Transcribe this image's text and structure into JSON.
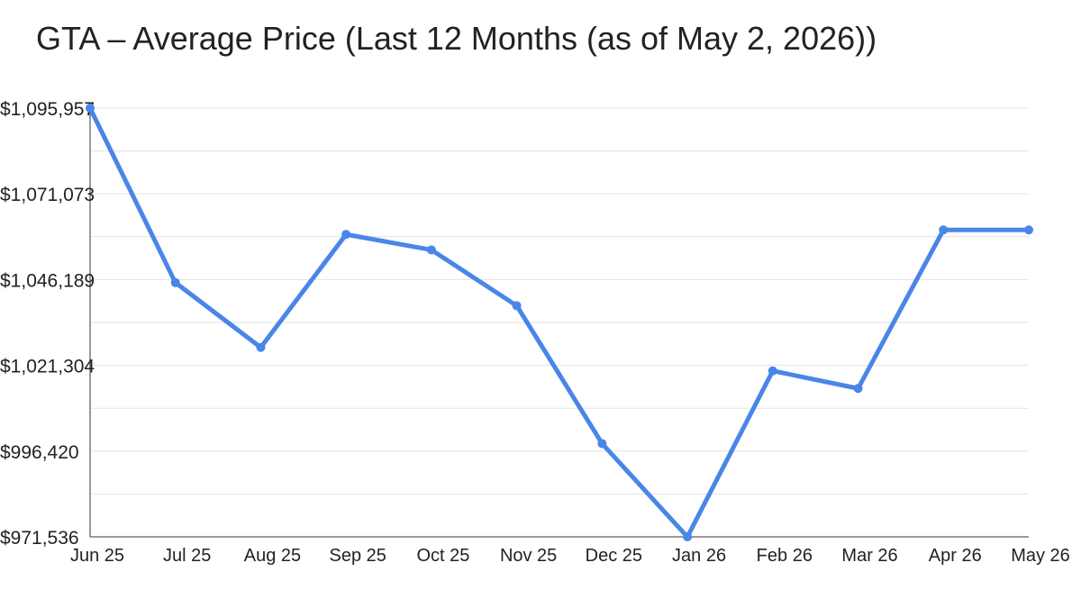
{
  "chart_data": {
    "type": "line",
    "title": "GTA – Average Price (Last 12 Months (as of May 2, 2026))",
    "xlabel": "",
    "ylabel": "",
    "categories": [
      "Jun 25",
      "Jul 25",
      "Aug 25",
      "Sep 25",
      "Oct 25",
      "Nov 25",
      "Dec 25",
      "Jan 26",
      "Feb 26",
      "Mar 26",
      "Apr 26",
      "May 26"
    ],
    "series": [
      {
        "values": [
          1095957,
          1045300,
          1026500,
          1059300,
          1054800,
          1038600,
          998600,
          971536,
          1019700,
          1014600,
          1060600,
          1060600
        ]
      }
    ],
    "ylim": [
      971536,
      1095957
    ],
    "yticks": [
      971536,
      996420,
      1021304,
      1046189,
      1071073,
      1095957
    ],
    "ytick_labels": [
      "$971,536",
      "$996,420",
      "$1,021,304",
      "$1,046,189",
      "$1,071,073",
      "$1,095,957"
    ],
    "grid": true,
    "legend": "none",
    "line_color": "#4a86e8"
  }
}
